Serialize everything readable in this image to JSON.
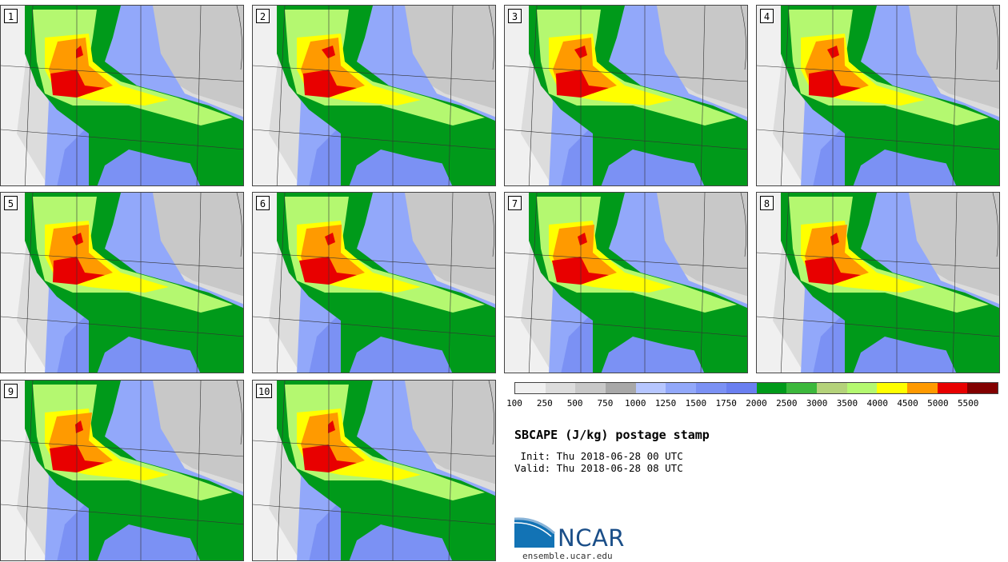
{
  "panels": [
    "1",
    "2",
    "3",
    "4",
    "5",
    "6",
    "7",
    "8",
    "9",
    "10"
  ],
  "legend": {
    "colors": [
      "#f0f0f0",
      "#dcdcdc",
      "#c8c8c8",
      "#a8a8a8",
      "#b6c6ff",
      "#92a8fa",
      "#7b91f4",
      "#6a7ff0",
      "#009a1a",
      "#3cb83c",
      "#b4d27a",
      "#b4f870",
      "#ffff00",
      "#ff9a00",
      "#e80000",
      "#820000"
    ],
    "labels": [
      "100",
      "250",
      "500",
      "750",
      "1000",
      "1250",
      "1500",
      "1750",
      "2000",
      "2500",
      "3000",
      "3500",
      "4000",
      "4500",
      "5000",
      "5500"
    ]
  },
  "title": "SBCAPE (J/kg) postage stamp",
  "init": " Init: Thu 2018-06-28 00 UTC",
  "valid": "Valid: Thu 2018-06-28 08 UTC",
  "logo_text": "NCAR",
  "site": "ensemble.ucar.edu"
}
